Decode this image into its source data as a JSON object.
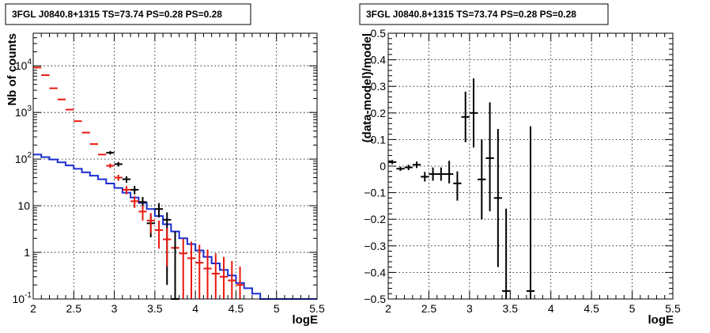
{
  "chart_data": [
    {
      "type": "line",
      "title": "3FGL J0840.8+1315 TS=73.74 PS=0.28 PS=0.28",
      "xlabel": "logE",
      "ylabel": "Nb of counts",
      "xlim": [
        2,
        5.5
      ],
      "ylim": [
        0.1,
        50000
      ],
      "y_scale": "log",
      "grid": true,
      "x_ticks": [
        "2",
        "2.5",
        "3",
        "3.5",
        "4",
        "4.5",
        "5",
        "5.5"
      ],
      "y_ticks": [
        {
          "value": 0.1,
          "base": "10",
          "exp": "-1"
        },
        {
          "value": 1,
          "base": "1",
          "exp": ""
        },
        {
          "value": 10,
          "base": "10",
          "exp": ""
        },
        {
          "value": 100,
          "base": "10",
          "exp": "2"
        },
        {
          "value": 1000,
          "base": "10",
          "exp": "3"
        },
        {
          "value": 10000,
          "base": "10",
          "exp": "4"
        }
      ],
      "colors": {
        "data": "#000000",
        "model": "#e8180f",
        "background_model": "#1b2ecf"
      },
      "bins_lower_edges": [
        2.0,
        2.1,
        2.2,
        2.3,
        2.4,
        2.5,
        2.6,
        2.7,
        2.8,
        2.9,
        3.0,
        3.1,
        3.2,
        3.3,
        3.4,
        3.5,
        3.6,
        3.7,
        3.8,
        3.9,
        4.0,
        4.1,
        4.2,
        4.3,
        4.4,
        4.5,
        4.6,
        4.7,
        4.8,
        4.9,
        5.0,
        5.1,
        5.2,
        5.3,
        5.4
      ],
      "bin_width": 0.1,
      "series": [
        {
          "name": "",
          "role": "background_model",
          "style": "step",
          "values": [
            125,
            110,
            98,
            85,
            73,
            62,
            52,
            44,
            37,
            30,
            24,
            19,
            15,
            11.5,
            8.5,
            6,
            4,
            2.8,
            2,
            1.5,
            1.1,
            0.8,
            0.58,
            0.42,
            0.32,
            0.22,
            0.17,
            0.13,
            0.1,
            0.1,
            0.1,
            0.1,
            0.1,
            0.1,
            0.1
          ]
        },
        {
          "name": "",
          "role": "model",
          "style": "errorbar",
          "x": [
            2.05,
            2.15,
            2.25,
            2.35,
            2.45,
            2.55,
            2.65,
            2.75,
            2.85,
            2.95,
            3.05,
            3.15,
            3.25,
            3.35,
            3.45,
            3.55,
            3.65,
            3.75,
            3.85,
            3.95,
            4.05,
            4.15,
            4.25,
            4.35,
            4.45,
            4.55
          ],
          "y": [
            9200,
            6300,
            3300,
            1900,
            1150,
            650,
            370,
            210,
            125,
            72,
            40,
            22,
            12.5,
            7.5,
            4.8,
            3.0,
            1.9,
            1.25,
            0.95,
            0.75,
            0.6,
            0.45,
            0.35,
            0.3,
            0.25,
            0.2
          ],
          "err_low": [
            0,
            0,
            0,
            0,
            0,
            0,
            0,
            0,
            0,
            8,
            6,
            4.5,
            3.5,
            2.7,
            2.2,
            1.8,
            1.4,
            1.15,
            0.85,
            0.65,
            0.5,
            0.35,
            0.25,
            0.2,
            0.15,
            0.1
          ],
          "err_high": [
            0,
            0,
            0,
            0,
            0,
            0,
            0,
            0,
            0,
            8,
            6,
            4.5,
            3.5,
            2.7,
            2.2,
            1.8,
            1.4,
            1.15,
            1.0,
            0.95,
            0.85,
            0.7,
            0.6,
            0.5,
            0.4,
            0.3
          ]
        },
        {
          "name": "",
          "role": "data",
          "style": "errorbar",
          "x": [
            2.95,
            3.05,
            3.15,
            3.25,
            3.35,
            3.45,
            3.55,
            3.65,
            3.75
          ],
          "y": [
            137,
            78,
            37,
            22,
            12,
            4.2,
            8.5,
            5.0,
            0.1
          ],
          "err_low": [
            12,
            9,
            6,
            4.5,
            3.4,
            2.1,
            2.9,
            4.8,
            0
          ],
          "err_high": [
            12,
            9,
            6,
            4.5,
            3.4,
            2.1,
            2.9,
            2.2,
            0
          ]
        }
      ]
    },
    {
      "type": "scatter",
      "title": "3FGL J0840.8+1315 TS=73.74 PS=0.28 PS=0.28",
      "xlabel": "logE",
      "ylabel": "(data-model)/model",
      "xlim": [
        2,
        5.5
      ],
      "ylim": [
        -0.5,
        0.5
      ],
      "grid": true,
      "x_ticks": [
        "2",
        "2.5",
        "3",
        "3.5",
        "4",
        "4.5",
        "5",
        "5.5"
      ],
      "y_ticks": [
        "−0.5",
        "−0.4",
        "−0.3",
        "−0.2",
        "−0.1",
        "0",
        "0.1",
        "0.2",
        "0.3",
        "0.4",
        "0.5"
      ],
      "y_tick_values": [
        -0.5,
        -0.4,
        -0.3,
        -0.2,
        -0.1,
        0,
        0.1,
        0.2,
        0.3,
        0.4,
        0.5
      ],
      "colors": {
        "data": "#000000"
      },
      "series": [
        {
          "name": "",
          "style": "errorbar",
          "x": [
            2.05,
            2.15,
            2.25,
            2.35,
            2.45,
            2.55,
            2.65,
            2.75,
            2.85,
            2.95,
            3.05,
            3.15,
            3.25,
            3.35,
            3.45,
            3.75
          ],
          "y": [
            0.015,
            -0.01,
            -0.005,
            0.005,
            -0.04,
            -0.03,
            -0.03,
            -0.03,
            -0.065,
            0.185,
            0.2,
            -0.05,
            0.03,
            -0.12,
            -0.47,
            -0.47
          ],
          "x_err": 0.05,
          "err_low": [
            0.008,
            0.008,
            0.01,
            0.012,
            0.018,
            0.025,
            0.025,
            0.035,
            0.065,
            0.095,
            0.13,
            0.15,
            0.2,
            0.26,
            0.03,
            0.03
          ],
          "err_high": [
            0.008,
            0.008,
            0.01,
            0.012,
            0.018,
            0.025,
            0.025,
            0.05,
            0.045,
            0.095,
            0.13,
            0.15,
            0.21,
            0.26,
            0.31,
            0.62
          ]
        }
      ]
    }
  ]
}
